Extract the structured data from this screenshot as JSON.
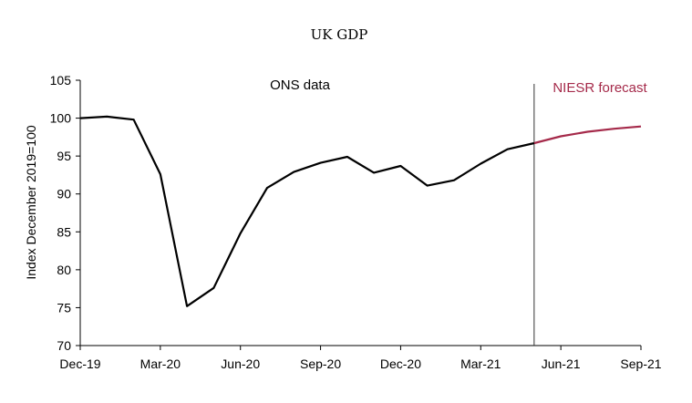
{
  "chart_data": {
    "type": "line",
    "title": "UK GDP",
    "ylabel": "Index December 2019=100",
    "xlabel": "",
    "ylim": [
      70,
      105
    ],
    "yticks": [
      70,
      75,
      80,
      85,
      90,
      95,
      100,
      105
    ],
    "x_tick_labels": [
      "Dec-19",
      "Mar-20",
      "Jun-20",
      "Sep-20",
      "Dec-20",
      "Mar-21",
      "Jun-21",
      "Sep-21"
    ],
    "x": [
      "Dec-19",
      "Jan-20",
      "Feb-20",
      "Mar-20",
      "Apr-20",
      "May-20",
      "Jun-20",
      "Jul-20",
      "Aug-20",
      "Sep-20",
      "Oct-20",
      "Nov-20",
      "Dec-20",
      "Jan-21",
      "Feb-21",
      "Mar-21",
      "Apr-21",
      "May-21",
      "Jun-21",
      "Jul-21",
      "Aug-21",
      "Sep-21"
    ],
    "grid": false,
    "series": [
      {
        "name": "ONS data",
        "color": "#000000",
        "points": [
          {
            "x": "Dec-19",
            "y": 100.0
          },
          {
            "x": "Jan-20",
            "y": 100.2
          },
          {
            "x": "Feb-20",
            "y": 99.8
          },
          {
            "x": "Mar-20",
            "y": 92.6
          },
          {
            "x": "Apr-20",
            "y": 75.2
          },
          {
            "x": "May-20",
            "y": 77.6
          },
          {
            "x": "Jun-20",
            "y": 84.8
          },
          {
            "x": "Jul-20",
            "y": 90.8
          },
          {
            "x": "Aug-20",
            "y": 92.9
          },
          {
            "x": "Sep-20",
            "y": 94.1
          },
          {
            "x": "Oct-20",
            "y": 94.9
          },
          {
            "x": "Nov-20",
            "y": 92.8
          },
          {
            "x": "Dec-20",
            "y": 93.7
          },
          {
            "x": "Jan-21",
            "y": 91.1
          },
          {
            "x": "Feb-21",
            "y": 91.8
          },
          {
            "x": "Mar-21",
            "y": 94.0
          },
          {
            "x": "Apr-21",
            "y": 95.9
          },
          {
            "x": "May-21",
            "y": 96.7
          }
        ]
      },
      {
        "name": "NIESR forecast",
        "color": "#a52a4a",
        "points": [
          {
            "x": "May-21",
            "y": 96.7
          },
          {
            "x": "Jun-21",
            "y": 97.6
          },
          {
            "x": "Jul-21",
            "y": 98.2
          },
          {
            "x": "Aug-21",
            "y": 98.6
          },
          {
            "x": "Sep-21",
            "y": 98.9
          }
        ]
      }
    ],
    "divider_at": "May-21",
    "annotations": {
      "ons": "ONS data",
      "niesr": "NIESR forecast"
    }
  }
}
